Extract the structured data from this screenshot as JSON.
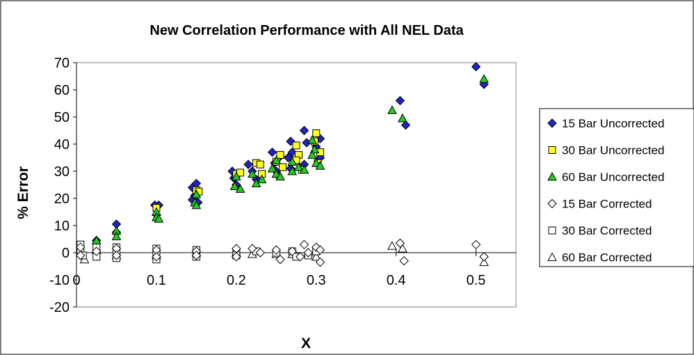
{
  "chart_data": {
    "type": "scatter",
    "title": "New Correlation Performance with All NEL Data",
    "xlabel": "X",
    "ylabel": "% Error",
    "xlim": [
      0,
      0.55
    ],
    "ylim": [
      -20,
      70
    ],
    "x_ticks": [
      0,
      0.1,
      0.2,
      0.3,
      0.4,
      0.5
    ],
    "x_tick_labels": [
      "0",
      "0.1",
      "0.2",
      "0.3",
      "0.4",
      "0.5"
    ],
    "y_ticks": [
      -20,
      -10,
      0,
      10,
      20,
      30,
      40,
      50,
      60,
      70
    ],
    "y_tick_labels": [
      "-20",
      "-10",
      "0",
      "10",
      "20",
      "30",
      "40",
      "50",
      "60",
      "70"
    ],
    "grid": false,
    "legend_position": "right",
    "series": [
      {
        "name": "15 Bar Uncorrected",
        "marker": "diamond",
        "fill": "#1f24c8",
        "points": [
          [
            0.025,
            4.5
          ],
          [
            0.05,
            10.5
          ],
          [
            0.05,
            7.5
          ],
          [
            0.098,
            17.5
          ],
          [
            0.103,
            17.5
          ],
          [
            0.1,
            14
          ],
          [
            0.145,
            24
          ],
          [
            0.15,
            25.5
          ],
          [
            0.148,
            21
          ],
          [
            0.145,
            19.5
          ],
          [
            0.152,
            18.5
          ],
          [
            0.195,
            30
          ],
          [
            0.2,
            25
          ],
          [
            0.197,
            27.5
          ],
          [
            0.215,
            32.5
          ],
          [
            0.22,
            30
          ],
          [
            0.225,
            27
          ],
          [
            0.245,
            37
          ],
          [
            0.248,
            33
          ],
          [
            0.25,
            30
          ],
          [
            0.255,
            35.5
          ],
          [
            0.252,
            28.5
          ],
          [
            0.268,
            41
          ],
          [
            0.27,
            37
          ],
          [
            0.265,
            35
          ],
          [
            0.268,
            31
          ],
          [
            0.285,
            45
          ],
          [
            0.288,
            40.5
          ],
          [
            0.285,
            32.5
          ],
          [
            0.3,
            39
          ],
          [
            0.305,
            42
          ],
          [
            0.305,
            35
          ],
          [
            0.405,
            56
          ],
          [
            0.412,
            47
          ],
          [
            0.5,
            68.5
          ],
          [
            0.51,
            62
          ]
        ]
      },
      {
        "name": "30 Bar Uncorrected",
        "marker": "square",
        "fill": "#ffff1a",
        "points": [
          [
            0.1,
            16.5
          ],
          [
            0.15,
            23
          ],
          [
            0.153,
            22.5
          ],
          [
            0.2,
            29
          ],
          [
            0.205,
            29.5
          ],
          [
            0.225,
            33
          ],
          [
            0.23,
            32.5
          ],
          [
            0.232,
            29
          ],
          [
            0.255,
            36
          ],
          [
            0.25,
            33.5
          ],
          [
            0.258,
            31.5
          ],
          [
            0.275,
            39.5
          ],
          [
            0.278,
            36
          ],
          [
            0.275,
            34
          ],
          [
            0.282,
            30.5
          ],
          [
            0.3,
            44
          ],
          [
            0.298,
            41
          ],
          [
            0.305,
            37
          ],
          [
            0.302,
            33
          ]
        ]
      },
      {
        "name": "60 Bar Uncorrected",
        "marker": "triangle",
        "fill": "#22cc22",
        "points": [
          [
            0.025,
            4.5
          ],
          [
            0.05,
            8
          ],
          [
            0.05,
            6
          ],
          [
            0.1,
            15
          ],
          [
            0.1,
            13
          ],
          [
            0.103,
            12.5
          ],
          [
            0.15,
            21.5
          ],
          [
            0.148,
            18.5
          ],
          [
            0.15,
            17.5
          ],
          [
            0.2,
            28
          ],
          [
            0.198,
            24.5
          ],
          [
            0.205,
            23.5
          ],
          [
            0.22,
            29
          ],
          [
            0.225,
            25.5
          ],
          [
            0.232,
            27
          ],
          [
            0.245,
            31
          ],
          [
            0.25,
            34
          ],
          [
            0.25,
            29
          ],
          [
            0.255,
            28
          ],
          [
            0.27,
            33.5
          ],
          [
            0.27,
            30
          ],
          [
            0.278,
            31.5
          ],
          [
            0.285,
            30.5
          ],
          [
            0.295,
            41.5
          ],
          [
            0.298,
            38
          ],
          [
            0.295,
            36
          ],
          [
            0.3,
            33
          ],
          [
            0.305,
            32
          ],
          [
            0.395,
            52.5
          ],
          [
            0.408,
            49.5
          ],
          [
            0.51,
            64
          ]
        ]
      },
      {
        "name": "15 Bar Corrected",
        "marker": "diamond",
        "fill": "#ffffff",
        "points": [
          [
            0.005,
            2
          ],
          [
            0.005,
            -1
          ],
          [
            0.025,
            0.5
          ],
          [
            0.05,
            1.5
          ],
          [
            0.05,
            -1
          ],
          [
            0.1,
            1
          ],
          [
            0.1,
            -1.5
          ],
          [
            0.15,
            0.5
          ],
          [
            0.15,
            -1
          ],
          [
            0.2,
            1.5
          ],
          [
            0.2,
            -1.5
          ],
          [
            0.22,
            1.5
          ],
          [
            0.23,
            0
          ],
          [
            0.25,
            1
          ],
          [
            0.255,
            -2.5
          ],
          [
            0.27,
            0.5
          ],
          [
            0.28,
            -1.5
          ],
          [
            0.285,
            3
          ],
          [
            0.29,
            0
          ],
          [
            0.3,
            2
          ],
          [
            0.305,
            -3.5
          ],
          [
            0.305,
            1
          ],
          [
            0.405,
            3.5
          ],
          [
            0.41,
            -3
          ],
          [
            0.5,
            3
          ],
          [
            0.51,
            -1.5
          ]
        ]
      },
      {
        "name": "30 Bar Corrected",
        "marker": "square",
        "fill": "#ffffff",
        "points": [
          [
            0.005,
            3
          ],
          [
            0.005,
            1
          ],
          [
            0.008,
            -1
          ],
          [
            0.025,
            2
          ],
          [
            0.025,
            -1.5
          ],
          [
            0.05,
            2
          ],
          [
            0.05,
            0
          ],
          [
            0.05,
            -2
          ],
          [
            0.1,
            1.5
          ],
          [
            0.1,
            -0.5
          ],
          [
            0.1,
            -2.5
          ],
          [
            0.15,
            1
          ],
          [
            0.15,
            -1.5
          ],
          [
            0.2,
            0.5
          ],
          [
            0.2,
            -1
          ],
          [
            0.225,
            0.5
          ],
          [
            0.25,
            0
          ],
          [
            0.27,
            0.5
          ],
          [
            0.275,
            -1.5
          ],
          [
            0.29,
            -1
          ],
          [
            0.3,
            0.5
          ]
        ]
      },
      {
        "name": "60 Bar Corrected",
        "marker": "triangle",
        "fill": "#ffffff",
        "points": [
          [
            0.005,
            0
          ],
          [
            0.01,
            -2.5
          ],
          [
            0.025,
            1
          ],
          [
            0.05,
            -1
          ],
          [
            0.1,
            -1
          ],
          [
            0.15,
            0
          ],
          [
            0.2,
            0
          ],
          [
            0.22,
            -0.5
          ],
          [
            0.25,
            -0.5
          ],
          [
            0.27,
            -0.5
          ],
          [
            0.29,
            0
          ],
          [
            0.3,
            -1.5
          ],
          [
            0.395,
            2.5
          ],
          [
            0.408,
            1.5
          ],
          [
            0.51,
            -3.5
          ]
        ]
      }
    ]
  }
}
